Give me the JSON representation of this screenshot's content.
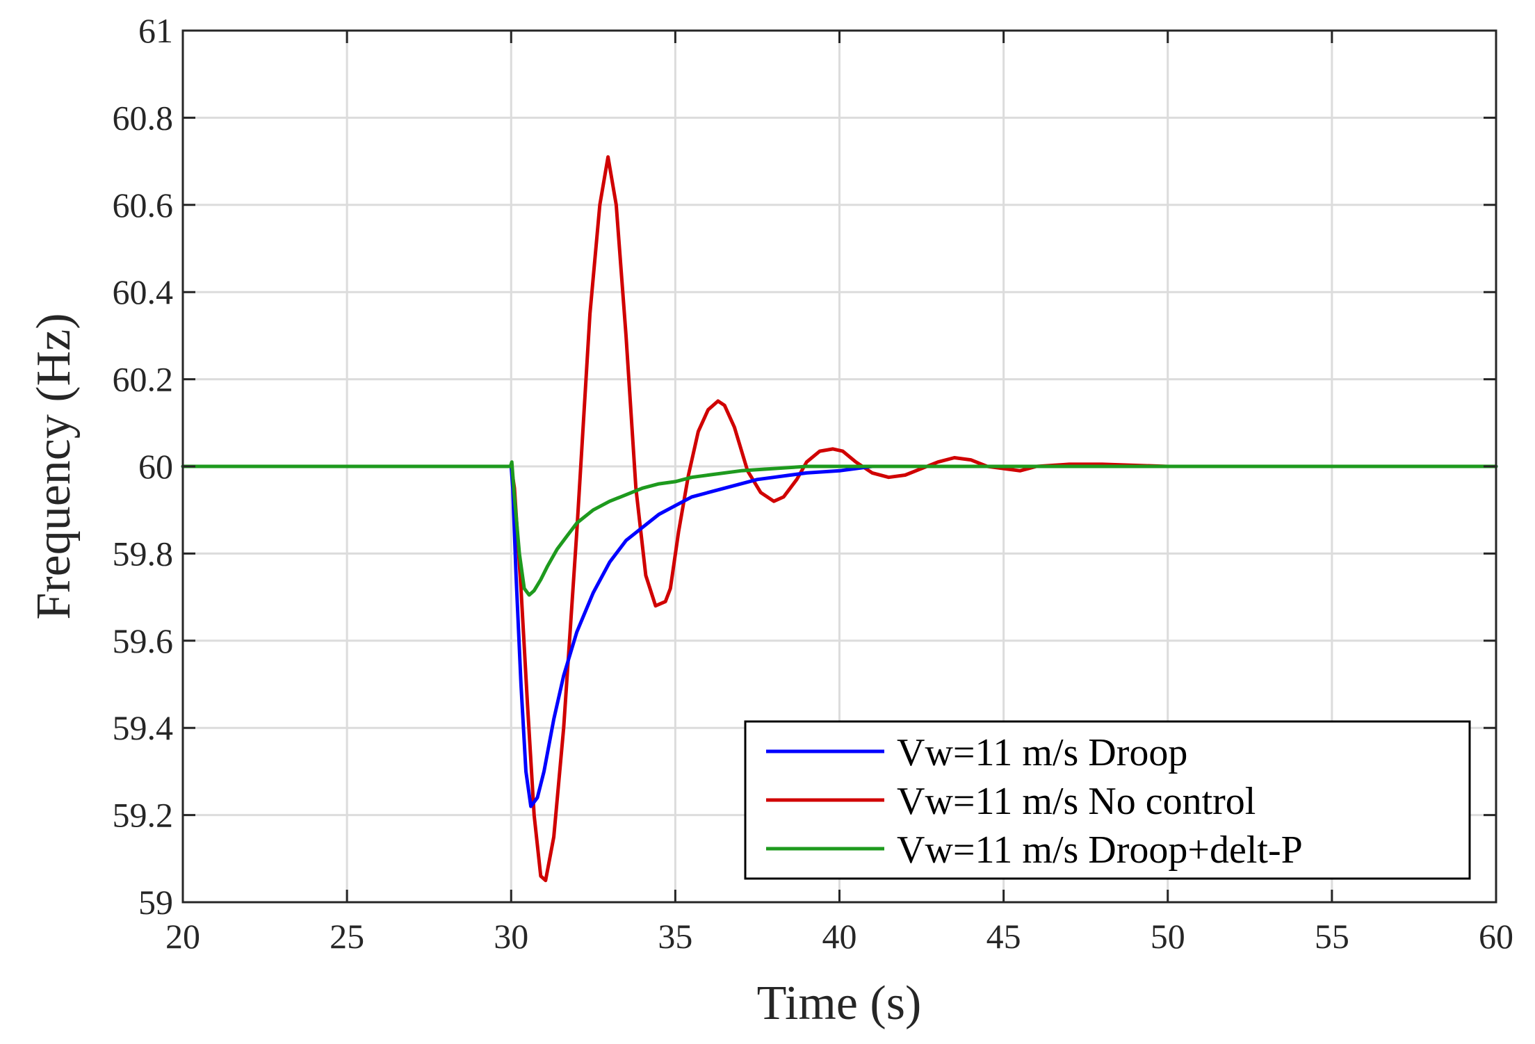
{
  "chart_data": {
    "type": "line",
    "title": "",
    "xlabel": "Time (s)",
    "ylabel": "Frequency (Hz)",
    "xlim": [
      20,
      60
    ],
    "ylim": [
      59,
      61
    ],
    "xticks": [
      20,
      25,
      30,
      35,
      40,
      45,
      50,
      55,
      60
    ],
    "yticks": [
      59,
      59.2,
      59.4,
      59.6,
      59.8,
      60,
      60.2,
      60.4,
      60.6,
      60.8,
      61
    ],
    "xtick_labels": [
      "20",
      "25",
      "30",
      "35",
      "40",
      "45",
      "50",
      "55",
      "60"
    ],
    "ytick_labels": [
      "59",
      "59.2",
      "59.4",
      "59.6",
      "59.8",
      "60",
      "60.2",
      "60.4",
      "60.6",
      "60.8",
      "61"
    ],
    "grid": true,
    "legend_position": "bottom-right",
    "series": [
      {
        "name": "Vw=11 m/s Droop",
        "color": "#0000ff",
        "x": [
          20,
          30,
          30.05,
          30.15,
          30.3,
          30.45,
          30.6,
          30.8,
          31.0,
          31.3,
          31.6,
          32.0,
          32.5,
          33.0,
          33.5,
          34.0,
          34.5,
          35.0,
          35.5,
          36.0,
          36.5,
          37.0,
          37.5,
          38.0,
          38.5,
          39.0,
          40.0,
          41.0,
          42.0,
          44.0,
          46.0,
          48.0,
          50.0,
          52.0,
          54.0,
          56.0,
          58.0,
          60.0
        ],
        "y": [
          60,
          60,
          59.95,
          59.75,
          59.5,
          59.3,
          59.22,
          59.24,
          59.3,
          59.42,
          59.52,
          59.62,
          59.71,
          59.78,
          59.83,
          59.86,
          59.89,
          59.91,
          59.93,
          59.94,
          59.95,
          59.96,
          59.97,
          59.975,
          59.98,
          59.985,
          59.99,
          60.0,
          60.0,
          60.0,
          60.0,
          60.0,
          60.0,
          60.0,
          60.0,
          60.0,
          60.0,
          60.0
        ]
      },
      {
        "name": "Vw=11 m/s No control",
        "color": "#d00000",
        "x": [
          20,
          30,
          30.1,
          30.3,
          30.5,
          30.7,
          30.9,
          31.05,
          31.3,
          31.6,
          32.0,
          32.4,
          32.7,
          32.95,
          33.2,
          33.5,
          33.8,
          34.1,
          34.4,
          34.7,
          34.85,
          35.1,
          35.4,
          35.7,
          36.0,
          36.3,
          36.5,
          36.8,
          37.2,
          37.6,
          38.0,
          38.3,
          38.7,
          39.0,
          39.4,
          39.8,
          40.1,
          40.5,
          41.0,
          41.5,
          42.0,
          42.5,
          43.0,
          43.5,
          44.0,
          44.5,
          45.0,
          45.5,
          46.0,
          47.0,
          48.0,
          50.0,
          52.0,
          55.0,
          60.0
        ],
        "y": [
          60,
          60,
          59.95,
          59.72,
          59.45,
          59.2,
          59.06,
          59.05,
          59.15,
          59.4,
          59.85,
          60.35,
          60.6,
          60.71,
          60.6,
          60.3,
          59.95,
          59.75,
          59.68,
          59.69,
          59.72,
          59.85,
          59.98,
          60.08,
          60.13,
          60.15,
          60.14,
          60.09,
          59.99,
          59.94,
          59.92,
          59.93,
          59.97,
          60.01,
          60.035,
          60.04,
          60.035,
          60.01,
          59.985,
          59.975,
          59.98,
          59.995,
          60.01,
          60.02,
          60.015,
          60.0,
          59.995,
          59.99,
          60.0,
          60.005,
          60.005,
          60.0,
          60.0,
          60.0,
          60.0
        ]
      },
      {
        "name": "Vw=11 m/s Droop+delt-P",
        "color": "#1e9a1e",
        "x": [
          20,
          29.98,
          30.02,
          30.1,
          30.25,
          30.4,
          30.55,
          30.7,
          30.9,
          31.1,
          31.4,
          31.7,
          32.0,
          32.5,
          33.0,
          33.5,
          34.0,
          34.5,
          35.0,
          35.5,
          36.0,
          37.0,
          38.0,
          39.0,
          40.0,
          42.0,
          45.0,
          50.0,
          55.0,
          60.0
        ],
        "y": [
          60,
          60,
          60.01,
          59.93,
          59.8,
          59.72,
          59.705,
          59.715,
          59.74,
          59.77,
          59.81,
          59.84,
          59.87,
          59.9,
          59.92,
          59.935,
          59.95,
          59.96,
          59.965,
          59.975,
          59.98,
          59.99,
          59.995,
          60.0,
          60.0,
          60.0,
          60.0,
          60.0,
          60.0,
          60.0
        ]
      }
    ]
  }
}
